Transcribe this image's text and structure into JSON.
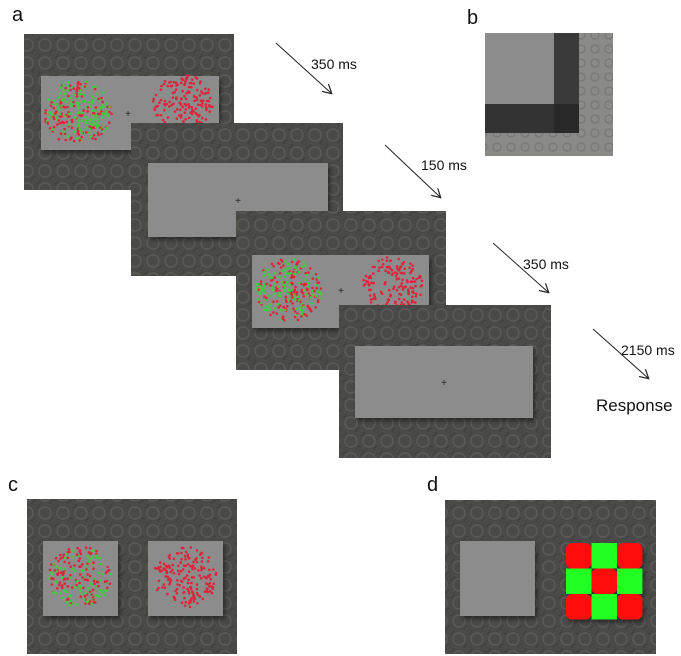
{
  "labels": {
    "a": "a",
    "b": "b",
    "c": "c",
    "d": "d"
  },
  "timings": [
    "350 ms",
    "150 ms",
    "350 ms",
    "2150 ms"
  ],
  "response_label": "Response",
  "colors": {
    "background_texture": "#4a4a48",
    "gray_window": "#8c8c8c",
    "red_dot": "#e0223a",
    "green_dot": "#3ccf3c",
    "checker_red": "#ff1111",
    "checker_green": "#22ff22",
    "b_dark_band": "#333333",
    "b_mid": "#2a2a2a",
    "b_texture": "#8a8a88"
  },
  "icons": {
    "fixation": "fixation-cross-icon",
    "arrow": "time-arrow-icon"
  }
}
